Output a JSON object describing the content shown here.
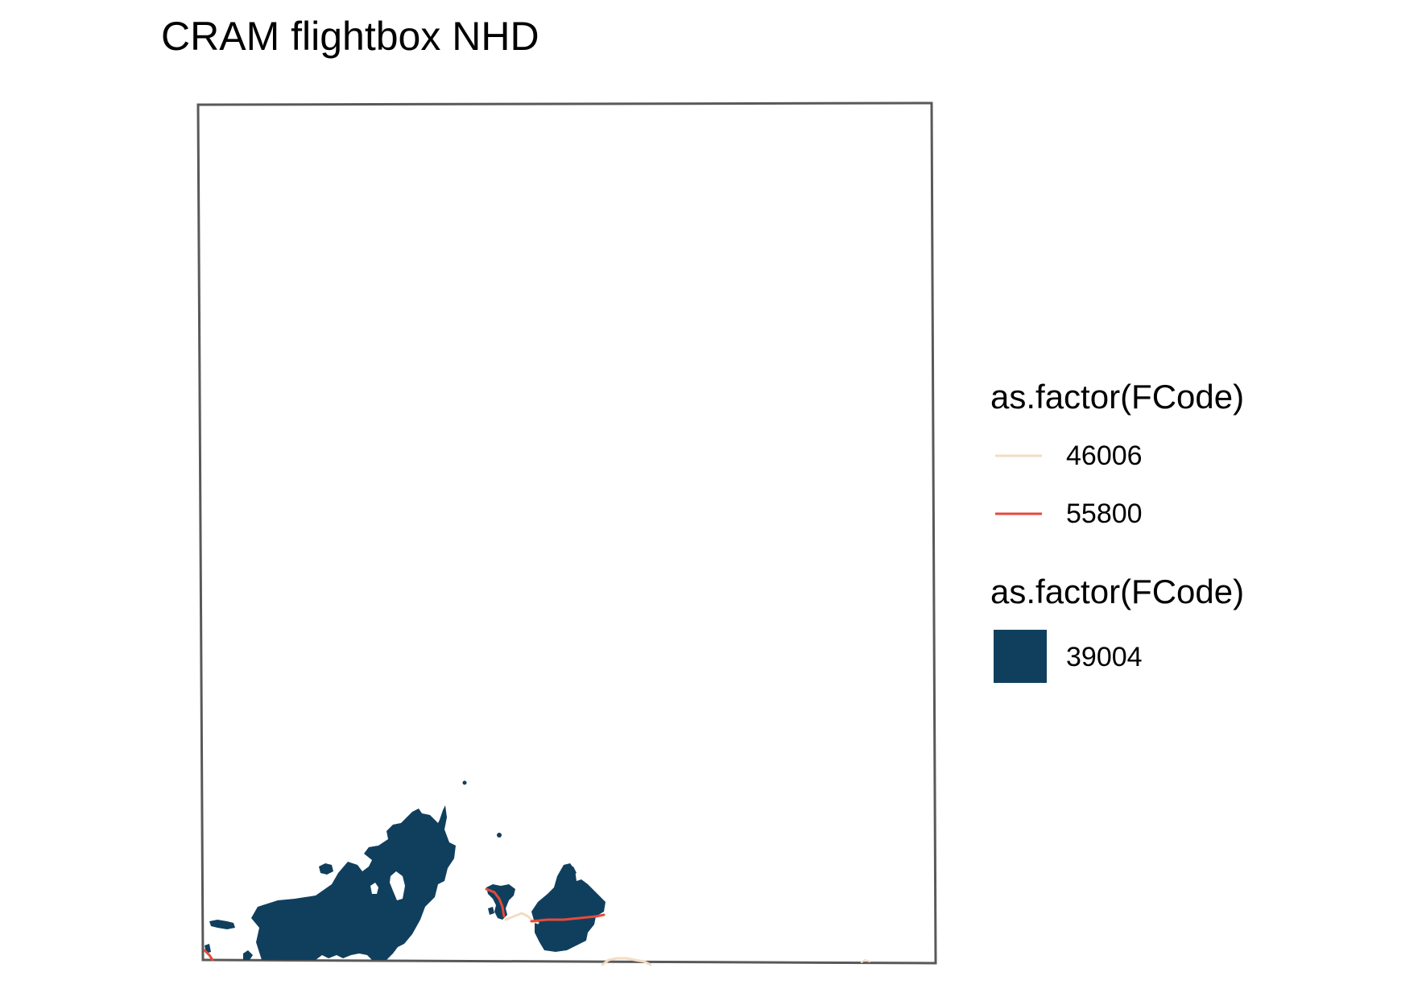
{
  "title": "CRAM flightbox NHD",
  "legend_lines": {
    "title": "as.factor(FCode)",
    "items": [
      {
        "label": "46006",
        "color": "#f3dcc4"
      },
      {
        "label": "55800",
        "color": "#e74a3b"
      }
    ]
  },
  "legend_fill": {
    "title": "as.factor(FCode)",
    "items": [
      {
        "label": "39004",
        "color": "#103f5e"
      }
    ]
  },
  "colors": {
    "frame": "#595959",
    "waterbody": "#103f5e",
    "stream_46006": "#f3dcc4",
    "stream_55800": "#e74a3b"
  }
}
